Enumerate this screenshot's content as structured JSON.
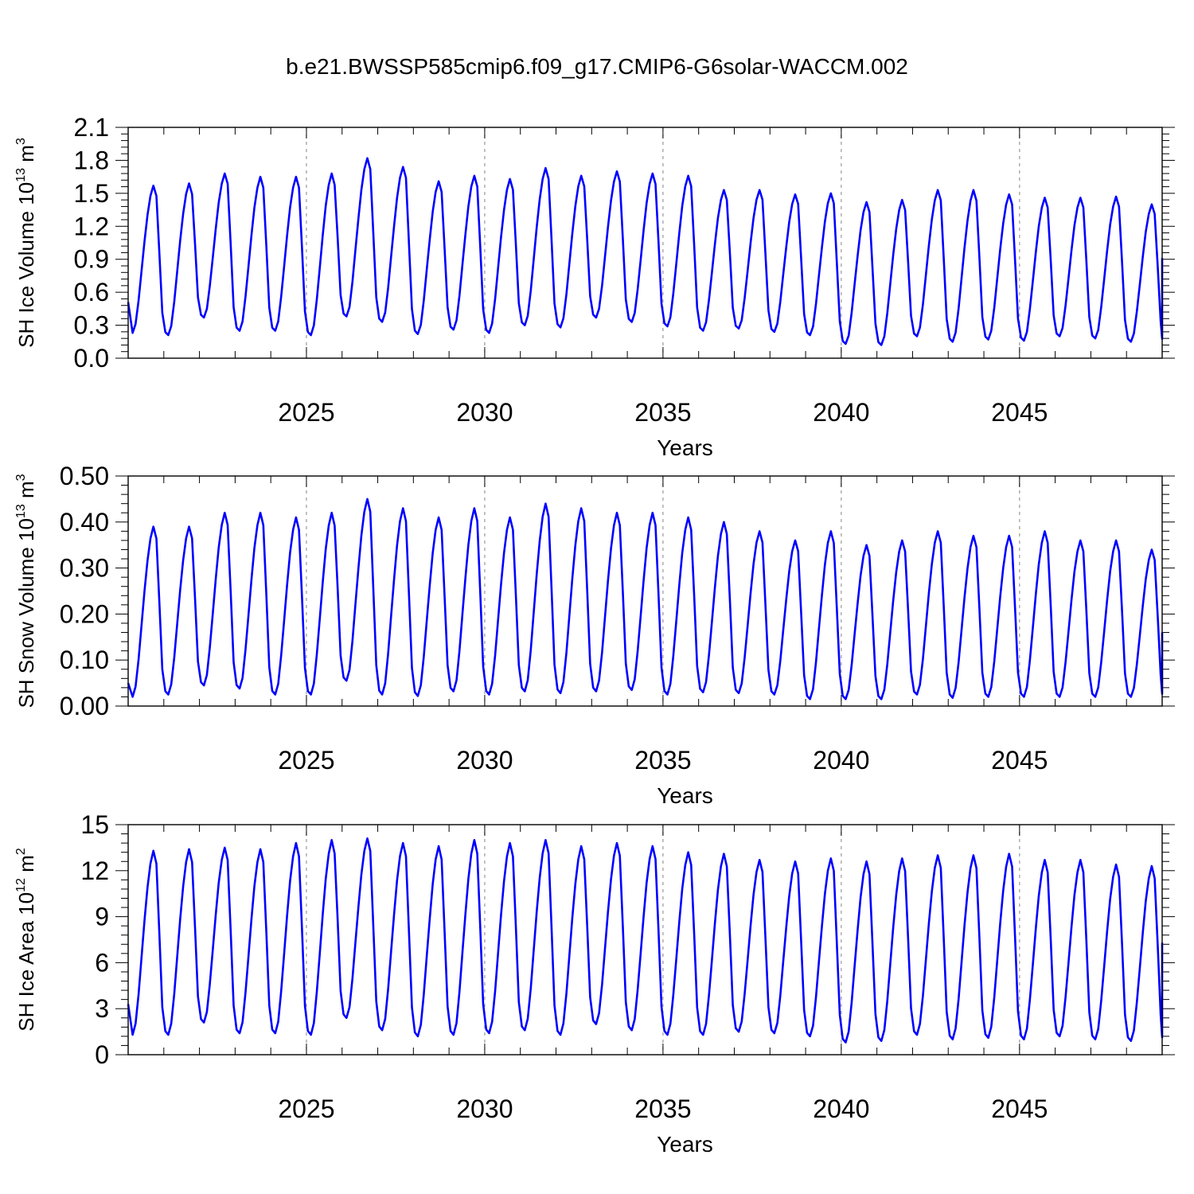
{
  "title": "b.e21.BWSSP585cmip6.f09_g17.CMIP6-G6solar-WACCM.002",
  "colors": {
    "series": "#0000ff",
    "axis": "#000000",
    "refline": "#999999"
  },
  "chart_data": [
    {
      "type": "line",
      "title": "",
      "xlabel": "Years",
      "ylabel_parts": [
        "SH Ice Volume 10",
        "13",
        " m",
        "3"
      ],
      "xlim": [
        2020,
        2049
      ],
      "ylim": [
        0,
        2.1
      ],
      "yticks": [
        "0.0",
        "0.3",
        "0.6",
        "0.9",
        "1.2",
        "1.5",
        "1.8",
        "2.1"
      ],
      "xticks": [
        "2025",
        "2030",
        "2035",
        "2040",
        "2045"
      ],
      "vref_lines": [
        2025,
        2030,
        2035,
        2040,
        2045
      ],
      "grid": false,
      "series": [
        {
          "x_start": 2020.0417,
          "x_step": 0.08333,
          "peaks": [
            1.57,
            1.59,
            1.68,
            1.65,
            1.65,
            1.68,
            1.82,
            1.74,
            1.61,
            1.66,
            1.63,
            1.73,
            1.66,
            1.7,
            1.68,
            1.66,
            1.53,
            1.53,
            1.49,
            1.5,
            1.42,
            1.44,
            1.53,
            1.53,
            1.49,
            1.46,
            1.46,
            1.47,
            1.4
          ],
          "troughs": [
            0.23,
            0.21,
            0.37,
            0.25,
            0.25,
            0.21,
            0.38,
            0.33,
            0.22,
            0.26,
            0.23,
            0.3,
            0.28,
            0.37,
            0.33,
            0.29,
            0.25,
            0.27,
            0.24,
            0.21,
            0.13,
            0.12,
            0.2,
            0.15,
            0.17,
            0.16,
            0.2,
            0.18,
            0.15
          ],
          "first_value": 0.51,
          "last_value": 0.91
        }
      ]
    },
    {
      "type": "line",
      "title": "",
      "xlabel": "Years",
      "ylabel_parts": [
        "SH Snow Volume 10",
        "13",
        " m",
        "3"
      ],
      "xlim": [
        2020,
        2049
      ],
      "ylim": [
        0,
        0.5
      ],
      "yticks": [
        "0.00",
        "0.10",
        "0.20",
        "0.30",
        "0.40",
        "0.50"
      ],
      "xticks": [
        "2025",
        "2030",
        "2035",
        "2040",
        "2045"
      ],
      "vref_lines": [
        2025,
        2030,
        2035,
        2040,
        2045
      ],
      "grid": false,
      "series": [
        {
          "x_start": 2020.0417,
          "x_step": 0.08333,
          "peaks": [
            0.39,
            0.39,
            0.42,
            0.42,
            0.41,
            0.42,
            0.45,
            0.43,
            0.41,
            0.43,
            0.41,
            0.44,
            0.43,
            0.42,
            0.42,
            0.41,
            0.4,
            0.38,
            0.36,
            0.38,
            0.35,
            0.36,
            0.38,
            0.37,
            0.37,
            0.38,
            0.36,
            0.36,
            0.34
          ],
          "troughs": [
            0.02,
            0.025,
            0.045,
            0.038,
            0.025,
            0.025,
            0.055,
            0.025,
            0.022,
            0.032,
            0.025,
            0.032,
            0.028,
            0.032,
            0.035,
            0.025,
            0.03,
            0.028,
            0.025,
            0.015,
            0.015,
            0.015,
            0.025,
            0.018,
            0.02,
            0.02,
            0.02,
            0.02,
            0.02
          ],
          "first_value": 0.05,
          "last_value": 0.16
        }
      ]
    },
    {
      "type": "line",
      "title": "",
      "xlabel": "Years",
      "ylabel_parts": [
        "SH Ice Area 10",
        "12",
        " m",
        "2"
      ],
      "xlim": [
        2020,
        2049
      ],
      "ylim": [
        0,
        15
      ],
      "yticks": [
        "0",
        "3",
        "6",
        "9",
        "12",
        "15"
      ],
      "xticks": [
        "2025",
        "2030",
        "2035",
        "2040",
        "2045"
      ],
      "vref_lines": [
        2025,
        2030,
        2035,
        2040,
        2045
      ],
      "grid": false,
      "series": [
        {
          "x_start": 2020.0417,
          "x_step": 0.08333,
          "peaks": [
            13.3,
            13.4,
            13.5,
            13.4,
            13.8,
            14.0,
            14.1,
            13.8,
            13.6,
            14.0,
            13.8,
            14.0,
            13.6,
            13.8,
            13.6,
            13.2,
            13.1,
            12.7,
            12.6,
            12.8,
            12.6,
            12.8,
            13.0,
            13.0,
            13.1,
            12.7,
            12.7,
            12.4,
            12.3
          ],
          "troughs": [
            1.3,
            1.3,
            2.1,
            1.4,
            1.4,
            1.3,
            2.4,
            1.6,
            1.2,
            1.3,
            1.4,
            1.6,
            1.3,
            2.0,
            1.6,
            1.3,
            1.3,
            1.5,
            1.4,
            1.2,
            0.8,
            0.9,
            1.3,
            1.0,
            1.1,
            1.0,
            1.2,
            1.0,
            0.9
          ],
          "first_value": 3.3,
          "last_value": 7.3
        }
      ]
    }
  ]
}
